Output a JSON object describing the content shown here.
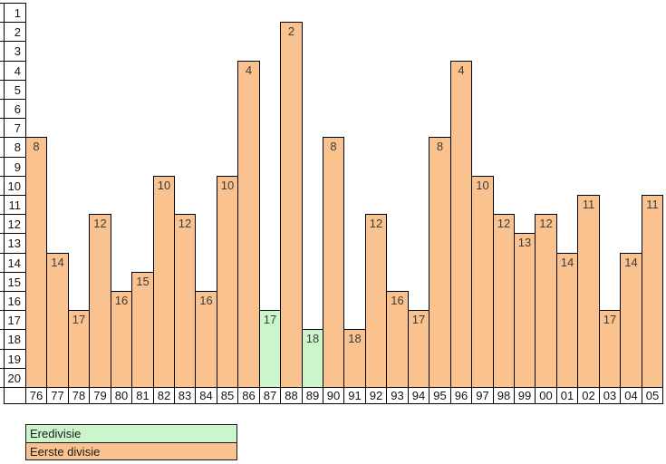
{
  "chart_data": {
    "type": "bar",
    "title": "",
    "xlabel": "",
    "ylabel": "",
    "categories": [
      "76",
      "77",
      "78",
      "79",
      "80",
      "81",
      "82",
      "83",
      "84",
      "85",
      "86",
      "87",
      "88",
      "89",
      "90",
      "91",
      "92",
      "93",
      "94",
      "95",
      "96",
      "97",
      "98",
      "99",
      "00",
      "01",
      "02",
      "03",
      "04",
      "05"
    ],
    "values": [
      8,
      14,
      17,
      12,
      16,
      15,
      10,
      12,
      16,
      10,
      4,
      17,
      2,
      18,
      8,
      18,
      12,
      16,
      17,
      8,
      4,
      10,
      12,
      13,
      12,
      14,
      11,
      17,
      14,
      11
    ],
    "point_league": [
      "eerste_divisie",
      "eerste_divisie",
      "eerste_divisie",
      "eerste_divisie",
      "eerste_divisie",
      "eerste_divisie",
      "eerste_divisie",
      "eerste_divisie",
      "eerste_divisie",
      "eerste_divisie",
      "eerste_divisie",
      "eredivisie",
      "eerste_divisie",
      "eredivisie",
      "eerste_divisie",
      "eerste_divisie",
      "eerste_divisie",
      "eerste_divisie",
      "eerste_divisie",
      "eerste_divisie",
      "eerste_divisie",
      "eerste_divisie",
      "eerste_divisie",
      "eerste_divisie",
      "eerste_divisie",
      "eerste_divisie",
      "eerste_divisie",
      "eerste_divisie",
      "eerste_divisie",
      "eerste_divisie"
    ],
    "y_axis": {
      "inverted": true,
      "min": 1,
      "max": 20,
      "ticks": [
        1,
        2,
        3,
        4,
        5,
        6,
        7,
        8,
        9,
        10,
        11,
        12,
        13,
        14,
        15,
        16,
        17,
        18,
        19,
        20
      ]
    },
    "grid": "off",
    "legend_position": "bottom-left",
    "legend": {
      "entries": [
        {
          "key": "eredivisie",
          "label": "Eredivisie",
          "color": "#ccf5cc"
        },
        {
          "key": "eerste_divisie",
          "label": "Eerste divisie",
          "color": "#fac28e"
        }
      ]
    },
    "colors": {
      "eredivisie": "#ccf5cc",
      "eerste_divisie": "#fac28e",
      "bar_border": "#000000",
      "cell_background": "#ffffff",
      "text": "#141414"
    }
  }
}
